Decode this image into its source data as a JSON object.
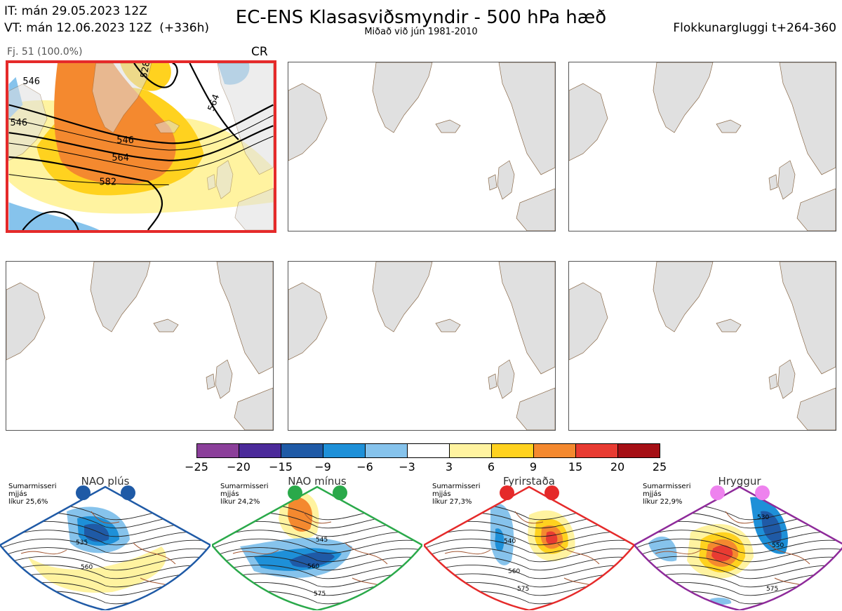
{
  "header": {
    "it_line": "IT: mán 29.05.2023 12Z",
    "vt_line": "VT: mán 12.06.2023 12Z  (+336h)",
    "title": "EC-ENS Klasasviðsmyndir - 500 hPa hæð",
    "subtitle": "Miðað við jún 1981-2010",
    "window": "Flokkunargluggi t+264-360"
  },
  "cluster_panel": {
    "count_label": "Fj. 51 (100.0%)",
    "regime_code": "CR",
    "highlight_color": "#e52a2a",
    "contour_labels": [
      "546",
      "528",
      "546",
      "564",
      "564",
      "582",
      "546"
    ]
  },
  "colorbar": {
    "colors": [
      "#8b3f9a",
      "#4b2a9a",
      "#1f5aa6",
      "#1e90d8",
      "#86c3ec",
      "#ffffff",
      "#fff3a0",
      "#ffd21f",
      "#f4892f",
      "#e83b32",
      "#a50f15"
    ],
    "ticks": [
      "−25",
      "−20",
      "−15",
      "−9",
      "−6",
      "−3",
      "3",
      "6",
      "9",
      "15",
      "20",
      "25"
    ]
  },
  "regimes": [
    {
      "name": "NAO plús",
      "note": "Sumarmisseri\nmjjás\nlíkur 25,6%",
      "color": "#1f5aa6",
      "contour_labels": [
        "535",
        "560"
      ]
    },
    {
      "name": "NAO mínus",
      "note": "Sumarmisseri\nmjjás\nlíkur 24,2%",
      "color": "#2aa94a",
      "contour_labels": [
        "545",
        "560",
        "575"
      ]
    },
    {
      "name": "Fyrirstaða",
      "note": "Sumarmisseri\nmjjás\nlíkur 27,3%",
      "color": "#e52a2a",
      "contour_labels": [
        "540",
        "560",
        "575"
      ]
    },
    {
      "name": "Hryggur",
      "note": "Sumarmisseri\nmjjás\nlíkur 22,9%",
      "color": "#8e2a9a",
      "dot_color": "#ee82ee",
      "contour_labels": [
        "530",
        "550",
        "575"
      ]
    }
  ]
}
